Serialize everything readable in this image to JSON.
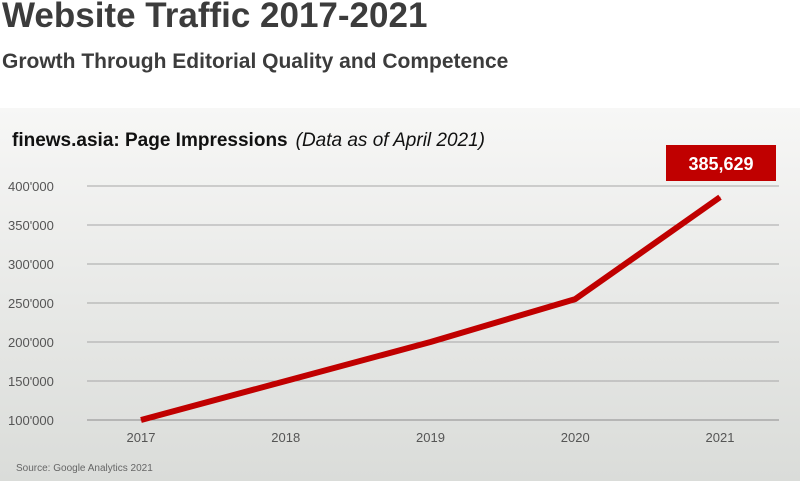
{
  "header": {
    "title": "Website Traffic 2017-2021",
    "subtitle": "Growth Through Editorial Quality and Competence"
  },
  "chart_heading": {
    "bold": "finews.asia: Page Impressions",
    "italic": "(Data as of April 2021)"
  },
  "source": "Source: Google Analytics 2021",
  "callout": "385,629",
  "colors": {
    "line": "#c00000",
    "callout_bg": "#c00000",
    "grid": "#a6a6a6",
    "text": "#3c3c3c"
  },
  "chart_data": {
    "type": "line",
    "categories": [
      "2017",
      "2018",
      "2019",
      "2020",
      "2021"
    ],
    "series": [
      {
        "values": [
          100000,
          150000,
          200000,
          255000,
          385629
        ]
      }
    ],
    "y_ticks": [
      100000,
      150000,
      200000,
      250000,
      300000,
      350000,
      400000
    ],
    "y_tick_labels": [
      "100'000",
      "150'000",
      "200'000",
      "250'000",
      "300'000",
      "350'000",
      "400'000"
    ],
    "ylim": [
      100000,
      400000
    ],
    "grid": true,
    "legend": "none"
  }
}
